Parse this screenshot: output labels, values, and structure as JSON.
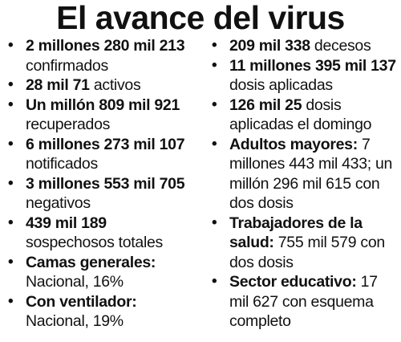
{
  "title": "El avance del virus",
  "bullet_glyph": "•",
  "left_items": [
    {
      "bold": "2 millones 280 mil 213",
      "normal": " confirmados"
    },
    {
      "bold": "28 mil 71",
      "normal": " activos"
    },
    {
      "bold": "Un millón 809 mil 921",
      "normal": " recuperados"
    },
    {
      "bold": "6 millones 273 mil 107",
      "normal": " notificados"
    },
    {
      "bold": "3 millones 553 mil 705",
      "normal": " negativos"
    },
    {
      "bold": "439 mil 189",
      "normal": " sospechosos totales"
    },
    {
      "bold": "Camas generales:",
      "normal": " Nacional, 16%"
    },
    {
      "bold": "Con ventilador:",
      "normal": " Nacional, 19%"
    }
  ],
  "right_items": [
    {
      "bold": "209 mil 338",
      "normal": " decesos"
    },
    {
      "bold": "11 millones 395 mil 137",
      "normal": " dosis aplicadas"
    },
    {
      "bold": "126 mil 25",
      "normal": " dosis aplicadas el domingo"
    },
    {
      "bold": "Adultos mayores:",
      "normal": " 7 millones 443 mil 433; un millón 296 mil 615 con dos dosis"
    },
    {
      "bold": "Trabajadores de la salud:",
      "normal": " 755 mil 579 con dos dosis"
    },
    {
      "bold": "Sector educativo:",
      "normal": " 17 mil 627 con esquema completo"
    }
  ]
}
